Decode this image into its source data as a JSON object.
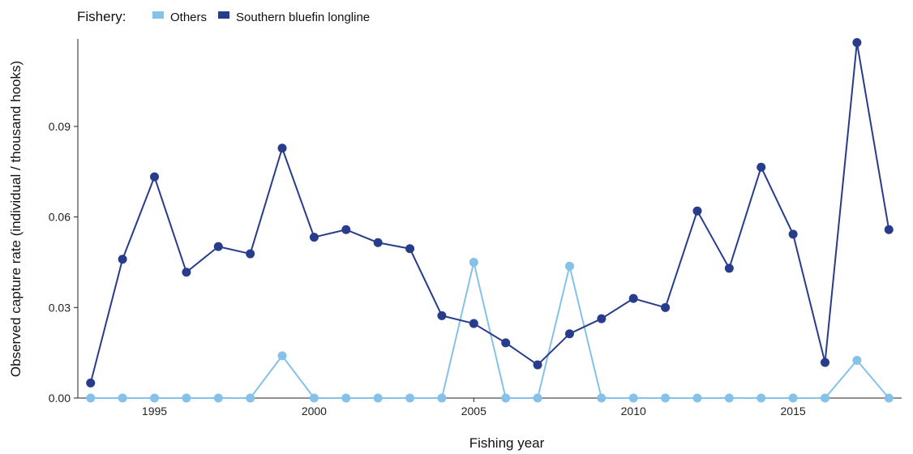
{
  "chart_data": {
    "type": "line",
    "legend": {
      "title": "Fishery:",
      "placement": "top-left"
    },
    "xlabel": "Fishing year",
    "ylabel": "Observed capture rate (individual / thousand hooks)",
    "xlim": [
      1992.6,
      2018.4
    ],
    "ylim": [
      0,
      0.119
    ],
    "xticks": [
      1995,
      2000,
      2005,
      2010,
      2015
    ],
    "xtick_labels": [
      "1995",
      "2000",
      "2005",
      "2010",
      "2015"
    ],
    "yticks": [
      0.0,
      0.03,
      0.06,
      0.09
    ],
    "ytick_labels": [
      "0.00",
      "0.03",
      "0.06",
      "0.09"
    ],
    "grid": false,
    "x": [
      1993,
      1994,
      1995,
      1996,
      1997,
      1998,
      1999,
      2000,
      2001,
      2002,
      2003,
      2004,
      2005,
      2006,
      2007,
      2008,
      2009,
      2010,
      2011,
      2012,
      2013,
      2014,
      2015,
      2016,
      2017,
      2018
    ],
    "series": [
      {
        "name": "Others",
        "color": "#85C1E9",
        "values": [
          0,
          0,
          0,
          0,
          0,
          0,
          0.014,
          0,
          0,
          0,
          0,
          0,
          0.045,
          0,
          0,
          0.0437,
          0,
          0,
          0,
          0,
          0,
          0,
          0,
          0,
          0.0125,
          0
        ]
      },
      {
        "name": "Southern bluefin longline",
        "color": "#273C8A",
        "values": [
          0.005,
          0.046,
          0.0733,
          0.0417,
          0.0502,
          0.0478,
          0.0828,
          0.0533,
          0.0558,
          0.0515,
          0.0495,
          0.0273,
          0.0247,
          0.0183,
          0.011,
          0.0213,
          0.0263,
          0.033,
          0.03,
          0.062,
          0.043,
          0.0765,
          0.0543,
          0.0118,
          0.1178,
          0.0558
        ]
      }
    ]
  }
}
